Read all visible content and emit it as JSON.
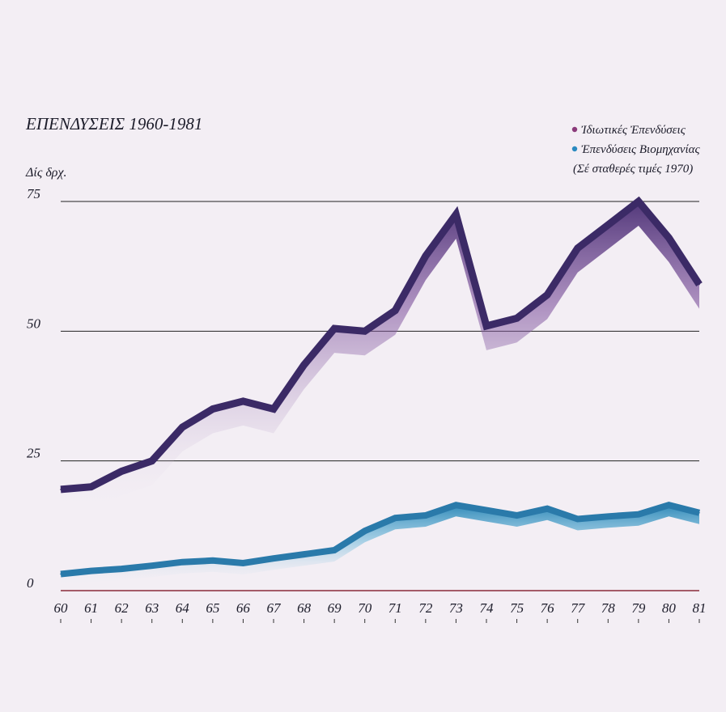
{
  "chart_data": {
    "type": "area",
    "title": "ΕΠΕΝΔΥΣΕΙΣ 1960-1981",
    "ylabel": "Δίς δρχ.",
    "note": "(Σέ σταθερές τιμές 1970)",
    "ylim": [
      0,
      75
    ],
    "yticks": [
      "0",
      "25",
      "50",
      "75"
    ],
    "grid": true,
    "legend_position": "top-right",
    "categories": [
      "60",
      "61",
      "62",
      "63",
      "64",
      "65",
      "66",
      "67",
      "68",
      "69",
      "70",
      "71",
      "72",
      "73",
      "74",
      "75",
      "76",
      "77",
      "78",
      "79",
      "80",
      "81"
    ],
    "series": [
      {
        "name": "Ἰδιωτικές Ἐπενδύσεις",
        "color": "#3b2a66",
        "legend_dot_color": "#8a3a7a",
        "values": [
          19.5,
          20,
          23,
          25,
          31.5,
          35,
          36.5,
          35,
          43.5,
          50.5,
          50,
          54,
          64.5,
          72.5,
          51,
          52.5,
          57,
          66,
          70.5,
          75,
          68,
          59
        ]
      },
      {
        "name": "Ἐπενδύσεις Βιομηχανίας",
        "color": "#2a7aaa",
        "legend_dot_color": "#2a8ac0",
        "values": [
          3.2,
          3.8,
          4.2,
          4.8,
          5.5,
          5.8,
          5.3,
          6.2,
          7,
          7.8,
          11.5,
          14,
          14.5,
          16.5,
          15.5,
          14.5,
          15.8,
          13.8,
          14.3,
          14.7,
          16.5,
          15
        ]
      }
    ]
  }
}
